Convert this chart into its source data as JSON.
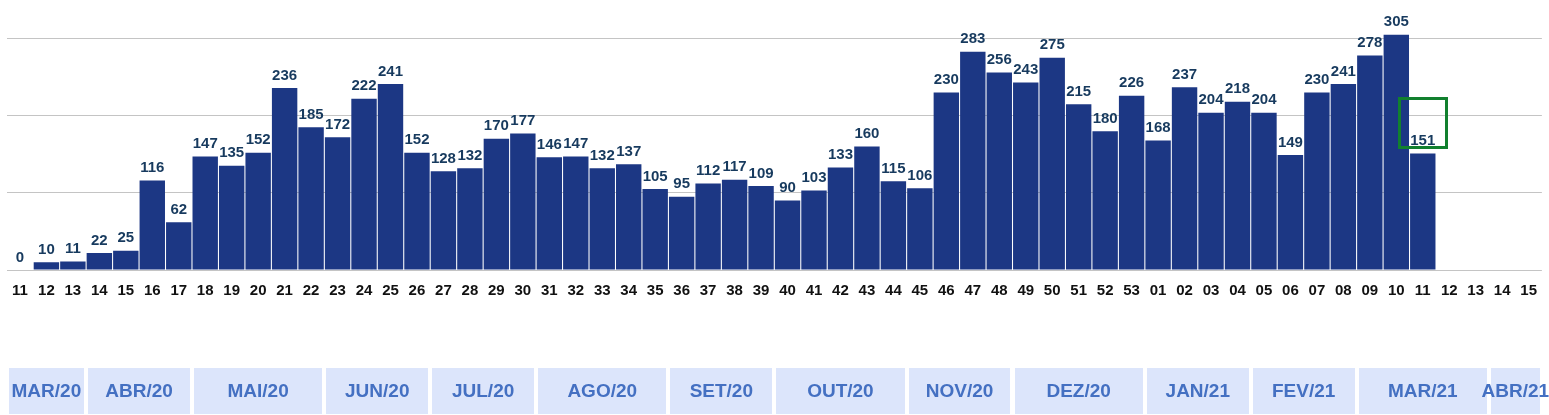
{
  "chart_data": {
    "type": "bar",
    "categories": [
      "11",
      "12",
      "13",
      "14",
      "15",
      "16",
      "17",
      "18",
      "19",
      "20",
      "21",
      "22",
      "23",
      "24",
      "25",
      "26",
      "27",
      "28",
      "29",
      "30",
      "31",
      "32",
      "33",
      "34",
      "35",
      "36",
      "37",
      "38",
      "39",
      "40",
      "41",
      "42",
      "43",
      "44",
      "45",
      "46",
      "47",
      "48",
      "49",
      "50",
      "51",
      "52",
      "53",
      "01",
      "02",
      "03",
      "04",
      "05",
      "06",
      "07",
      "08",
      "09",
      "10",
      "11",
      "12",
      "13",
      "14",
      "15"
    ],
    "values": [
      0,
      10,
      11,
      22,
      25,
      116,
      62,
      147,
      135,
      152,
      236,
      185,
      172,
      222,
      241,
      152,
      128,
      132,
      170,
      177,
      146,
      147,
      132,
      137,
      105,
      95,
      112,
      117,
      109,
      90,
      103,
      133,
      160,
      115,
      106,
      230,
      283,
      256,
      243,
      275,
      215,
      180,
      226,
      168,
      237,
      204,
      218,
      204,
      149,
      230,
      241,
      278,
      305,
      151,
      0,
      0,
      0,
      0
    ],
    "value_labels": [
      "0",
      "10",
      "11",
      "22",
      "25",
      "116",
      "62",
      "147",
      "135",
      "152",
      "236",
      "185",
      "172",
      "222",
      "241",
      "152",
      "128",
      "132",
      "170",
      "177",
      "146",
      "147",
      "132",
      "137",
      "105",
      "95",
      "112",
      "117",
      "109",
      "90",
      "103",
      "133",
      "160",
      "115",
      "106",
      "230",
      "283",
      "256",
      "243",
      "275",
      "215",
      "180",
      "226",
      "168",
      "237",
      "204",
      "218",
      "204",
      "149",
      "230",
      "241",
      "278",
      "305",
      "151",
      null,
      null,
      null,
      null
    ],
    "color": "#1c3784",
    "ylim": [
      0,
      350
    ],
    "yticks": [
      {
        "value": 0,
        "label": null
      },
      {
        "value": 100,
        "label": null
      },
      {
        "value": 200,
        "label": null
      },
      {
        "value": 300,
        "label": null
      }
    ],
    "tick_labels": "x",
    "grid": "y",
    "legend": false,
    "annotations": [
      "MAR/20",
      "ABR/20",
      "MAI/20",
      "JUN/20",
      "JUL/20",
      "AGO/20",
      "SET/20",
      "OUT/20",
      "NOV/20",
      "DEZ/20",
      "JAN/21",
      "FEV/21",
      "MAR/21",
      "ABR/21"
    ]
  }
}
